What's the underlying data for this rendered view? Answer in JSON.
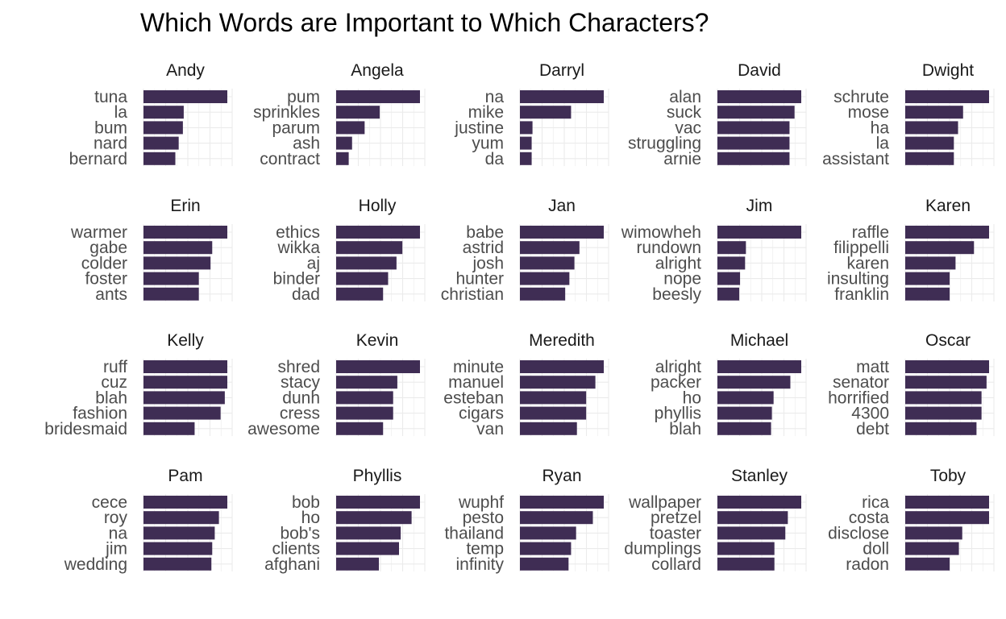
{
  "chart_data": {
    "type": "bar",
    "title": "Which Words are Important to Which Characters?",
    "xlabel": "",
    "ylabel": "",
    "orientation": "horizontal",
    "grid": true,
    "bar_color": "#3f2d54",
    "grid_color": "#ebebeb",
    "text_color": "#4d4d4d",
    "strip_text_color": "#1a1a1a",
    "value_note": "values read as fraction of each panel's full axis width (relative importance)",
    "facets": [
      {
        "name": "Andy",
        "categories": [
          "tuna",
          "la",
          "bum",
          "nard",
          "bernard"
        ],
        "values": [
          1.0,
          0.48,
          0.47,
          0.42,
          0.38
        ]
      },
      {
        "name": "Angela",
        "categories": [
          "pum",
          "sprinkles",
          "parum",
          "ash",
          "contract"
        ],
        "values": [
          1.0,
          0.52,
          0.34,
          0.19,
          0.15
        ]
      },
      {
        "name": "Darryl",
        "categories": [
          "na",
          "mike",
          "justine",
          "yum",
          "da"
        ],
        "values": [
          1.0,
          0.61,
          0.15,
          0.14,
          0.14
        ]
      },
      {
        "name": "David",
        "categories": [
          "alan",
          "suck",
          "vac",
          "struggling",
          "arnie"
        ],
        "values": [
          1.0,
          0.92,
          0.86,
          0.86,
          0.86
        ]
      },
      {
        "name": "Dwight",
        "categories": [
          "schrute",
          "mose",
          "ha",
          "la",
          "assistant"
        ],
        "values": [
          1.0,
          0.69,
          0.63,
          0.58,
          0.58
        ]
      },
      {
        "name": "Erin",
        "categories": [
          "warmer",
          "gabe",
          "colder",
          "foster",
          "ants"
        ],
        "values": [
          1.0,
          0.82,
          0.8,
          0.66,
          0.66
        ]
      },
      {
        "name": "Holly",
        "categories": [
          "ethics",
          "wikka",
          "aj",
          "binder",
          "dad"
        ],
        "values": [
          1.0,
          0.79,
          0.72,
          0.62,
          0.56
        ]
      },
      {
        "name": "Jan",
        "categories": [
          "babe",
          "astrid",
          "josh",
          "hunter",
          "christian"
        ],
        "values": [
          1.0,
          0.71,
          0.65,
          0.59,
          0.54
        ]
      },
      {
        "name": "Jim",
        "categories": [
          "wimowheh",
          "rundown",
          "alright",
          "nope",
          "beesly"
        ],
        "values": [
          1.0,
          0.34,
          0.33,
          0.27,
          0.26
        ]
      },
      {
        "name": "Karen",
        "categories": [
          "raffle",
          "filippelli",
          "karen",
          "insulting",
          "franklin"
        ],
        "values": [
          1.0,
          0.82,
          0.6,
          0.53,
          0.53
        ]
      },
      {
        "name": "Kelly",
        "categories": [
          "ruff",
          "cuz",
          "blah",
          "fashion",
          "bridesmaid"
        ],
        "values": [
          1.0,
          1.0,
          0.97,
          0.92,
          0.61
        ]
      },
      {
        "name": "Kevin",
        "categories": [
          "shred",
          "stacy",
          "dunh",
          "cress",
          "awesome"
        ],
        "values": [
          1.0,
          0.73,
          0.68,
          0.68,
          0.56
        ]
      },
      {
        "name": "Meredith",
        "categories": [
          "minute",
          "manuel",
          "esteban",
          "cigars",
          "van"
        ],
        "values": [
          1.0,
          0.9,
          0.79,
          0.79,
          0.68
        ]
      },
      {
        "name": "Michael",
        "categories": [
          "alright",
          "packer",
          "ho",
          "phyllis",
          "blah"
        ],
        "values": [
          1.0,
          0.87,
          0.67,
          0.65,
          0.64
        ]
      },
      {
        "name": "Oscar",
        "categories": [
          "matt",
          "senator",
          "horrified",
          "4300",
          "debt"
        ],
        "values": [
          1.0,
          0.97,
          0.91,
          0.91,
          0.85
        ]
      },
      {
        "name": "Pam",
        "categories": [
          "cece",
          "roy",
          "na",
          "jim",
          "wedding"
        ],
        "values": [
          1.0,
          0.9,
          0.85,
          0.82,
          0.81
        ]
      },
      {
        "name": "Phyllis",
        "categories": [
          "bob",
          "ho",
          "bob's",
          "clients",
          "afghani"
        ],
        "values": [
          1.0,
          0.9,
          0.77,
          0.75,
          0.51
        ]
      },
      {
        "name": "Ryan",
        "categories": [
          "wuphf",
          "pesto",
          "thailand",
          "temp",
          "infinity"
        ],
        "values": [
          1.0,
          0.87,
          0.67,
          0.61,
          0.58
        ]
      },
      {
        "name": "Stanley",
        "categories": [
          "wallpaper",
          "pretzel",
          "toaster",
          "dumplings",
          "collard"
        ],
        "values": [
          1.0,
          0.84,
          0.81,
          0.68,
          0.68
        ]
      },
      {
        "name": "Toby",
        "categories": [
          "rica",
          "costa",
          "disclose",
          "doll",
          "radon"
        ],
        "values": [
          1.0,
          1.0,
          0.68,
          0.64,
          0.53
        ]
      }
    ]
  }
}
